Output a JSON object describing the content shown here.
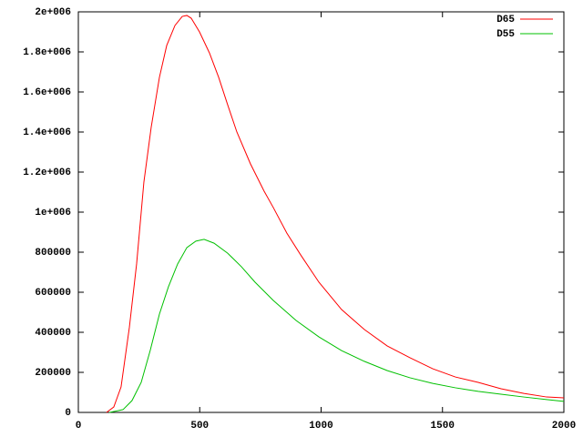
{
  "chart_data": {
    "type": "line",
    "xlim": [
      0,
      2000
    ],
    "xticks": [
      0,
      500,
      1000,
      1500,
      2000
    ],
    "ylim": [
      0,
      2000000
    ],
    "yticks": [
      0,
      200000,
      400000,
      600000,
      800000,
      {
        "value": 1000000,
        "label": "1e+006"
      },
      {
        "value": 1200000,
        "label": "1.2e+006"
      },
      {
        "value": 1400000,
        "label": "1.4e+006"
      },
      {
        "value": 1600000,
        "label": "1.6e+006"
      },
      {
        "value": 1800000,
        "label": "1.8e+006"
      },
      {
        "value": 2000000,
        "label": "2e+006"
      }
    ],
    "legend": "top-right",
    "series": [
      {
        "name": "D65",
        "color": "#ff0000",
        "x": [
          116,
          146,
          176,
          210,
          240,
          270,
          300,
          334,
          364,
          398,
          428,
          447,
          465,
          499,
          540,
          578,
          615,
          653,
          709,
          765,
          803,
          859,
          916,
          991,
          1084,
          1178,
          1272,
          1366,
          1460,
          1553,
          1647,
          1741,
          1835,
          1929,
          2000
        ],
        "values": [
          0,
          27000,
          127000,
          423000,
          741000,
          1150000,
          1423000,
          1673000,
          1832000,
          1932000,
          1977000,
          1982000,
          1968000,
          1900000,
          1795000,
          1673000,
          1536000,
          1400000,
          1241000,
          1105000,
          1023000,
          895000,
          786000,
          650000,
          514000,
          414000,
          332000,
          273000,
          218000,
          177000,
          150000,
          118000,
          95000,
          77000,
          73000
        ]
      },
      {
        "name": "D55",
        "color": "#00c000",
        "x": [
          128,
          184,
          221,
          259,
          296,
          334,
          371,
          409,
          447,
          484,
          518,
          559,
          615,
          672,
          728,
          803,
          897,
          991,
          1084,
          1178,
          1272,
          1366,
          1460,
          1553,
          1647,
          1741,
          1835,
          1929,
          2000
        ],
        "values": [
          0,
          14000,
          59000,
          150000,
          309000,
          491000,
          627000,
          741000,
          823000,
          855000,
          864000,
          845000,
          795000,
          727000,
          650000,
          559000,
          459000,
          377000,
          309000,
          255000,
          209000,
          173000,
          145000,
          123000,
          105000,
          91000,
          77000,
          64000,
          55000
        ]
      }
    ]
  }
}
